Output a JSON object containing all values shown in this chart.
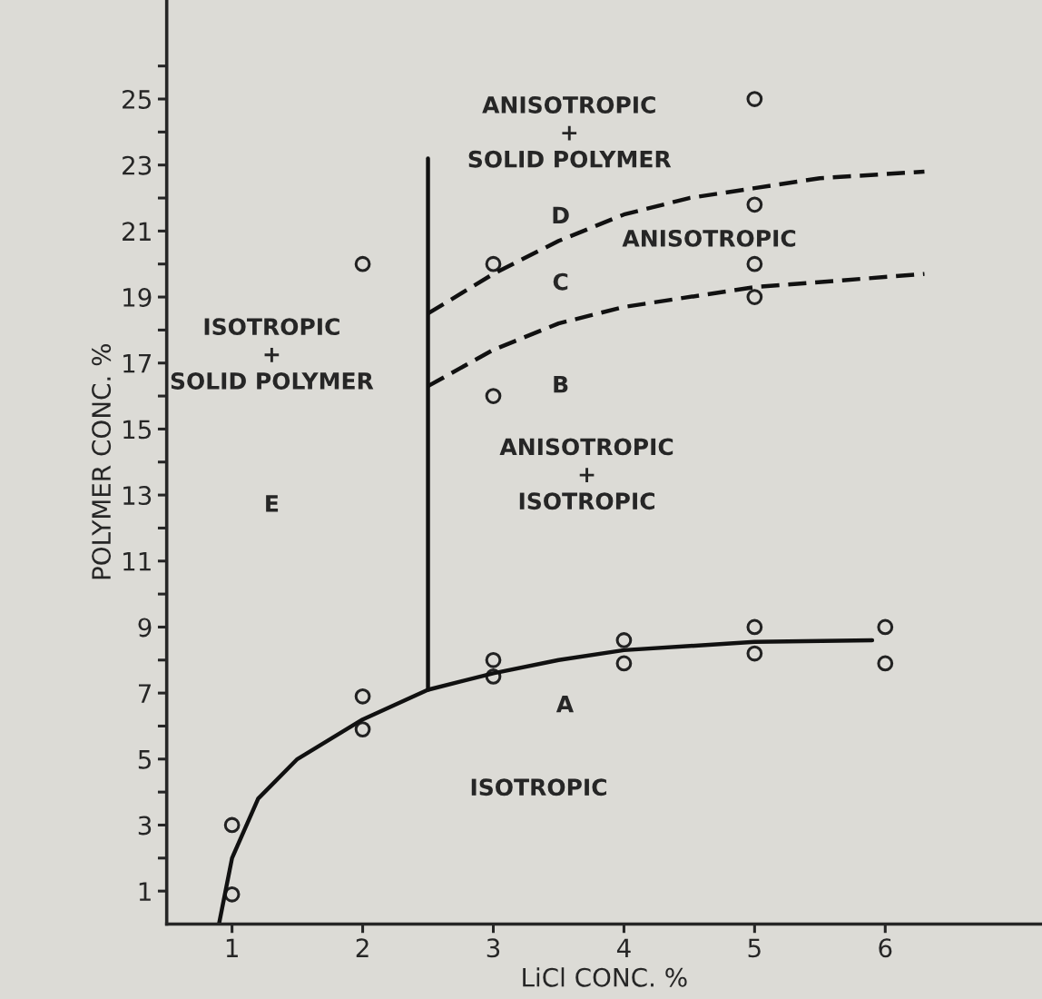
{
  "chart_data": {
    "type": "scatter",
    "xlabel": "LiCl CONC. %",
    "ylabel": "POLYMER CONC. %",
    "xlim": [
      0.5,
      7.2
    ],
    "ylim": [
      0,
      28
    ],
    "xticks": [
      1,
      2,
      3,
      4,
      5,
      6
    ],
    "yticks": [
      1,
      {
        "value": 2,
        "label": null
      },
      3,
      {
        "value": 4,
        "label": null
      },
      5,
      {
        "value": 6,
        "label": null
      },
      7,
      {
        "value": 8,
        "label": null
      },
      9,
      {
        "value": 10,
        "label": null
      },
      11,
      {
        "value": 12,
        "label": null
      },
      13,
      {
        "value": 14,
        "label": null
      },
      15,
      {
        "value": 16,
        "label": null
      },
      17,
      {
        "value": 18,
        "label": null
      },
      19,
      {
        "value": 20,
        "label": null
      },
      21,
      {
        "value": 22,
        "label": null
      },
      23,
      {
        "value": 24,
        "label": null
      },
      25,
      {
        "value": 26,
        "label": null
      }
    ],
    "grid": false,
    "legend": false,
    "series": [
      {
        "color": "#222222",
        "marker": "circle",
        "x": [
          1,
          1,
          2,
          2,
          3,
          3,
          4,
          4,
          5,
          5,
          6,
          6,
          2,
          3,
          3,
          5,
          5,
          5,
          5
        ],
        "values": [
          0.9,
          3,
          5.9,
          6.9,
          7.5,
          8,
          7.9,
          8.6,
          8.2,
          9,
          7.9,
          9,
          20,
          20,
          16,
          25,
          21.8,
          20,
          19
        ]
      },
      {
        "type": "line",
        "color": "#111111",
        "line_style": "solid",
        "marker": "none",
        "x": [
          0.9,
          1,
          1.2,
          1.5,
          2,
          2.5,
          3,
          3.5,
          4,
          5,
          5.9
        ],
        "values": [
          0,
          2,
          3.8,
          5,
          6.2,
          7.1,
          7.6,
          8,
          8.3,
          8.55,
          8.6
        ]
      },
      {
        "type": "line",
        "color": "#111111",
        "line_style": "solid",
        "marker": "none",
        "x": [
          2.5,
          2.5
        ],
        "values": [
          7.1,
          23.2
        ]
      },
      {
        "type": "line",
        "color": "#111111",
        "line_style": "dashed",
        "marker": "none",
        "x": [
          2.5,
          3,
          3.5,
          4,
          4.5,
          5,
          5.5,
          6.3
        ],
        "values": [
          18.5,
          19.7,
          20.7,
          21.5,
          22,
          22.3,
          22.6,
          22.8
        ]
      },
      {
        "type": "line",
        "color": "#111111",
        "line_style": "dashed",
        "marker": "none",
        "x": [
          2.5,
          3,
          3.5,
          4,
          5,
          6.3
        ],
        "values": [
          16.3,
          17.4,
          18.2,
          18.7,
          19.3,
          19.7
        ]
      }
    ],
    "annotations": [
      "ANISOTROPIC\n+\nSOLID POLYMER",
      "D",
      "ANISOTROPIC",
      "C",
      "B",
      "ANISOTROPIC\n+\nISOTROPIC",
      "ISOTROPIC\n+\nSOLID POLYMER",
      "E",
      "A",
      "ISOTROPIC"
    ]
  }
}
